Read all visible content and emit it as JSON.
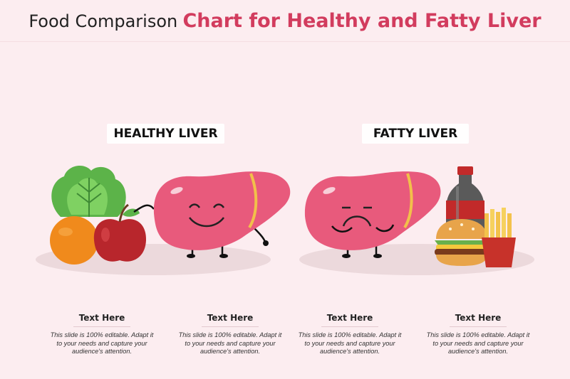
{
  "title": {
    "part1": "Food Comparison",
    "part2": "Chart for Healthy and Fatty Liver"
  },
  "sections": {
    "healthy": {
      "label": "HEALTHY LIVER"
    },
    "fatty": {
      "label": "FATTY LIVER"
    }
  },
  "cards": [
    {
      "heading": "Text Here",
      "body": "This slide is 100% editable. Adapt it to your needs and capture your audience's attention."
    },
    {
      "heading": "Text Here",
      "body": "This slide is 100% editable. Adapt it to your needs and capture your audience's attention."
    },
    {
      "heading": "Text Here",
      "body": "This slide is 100% editable. Adapt it to your needs and capture your audience's attention."
    },
    {
      "heading": "Text Here",
      "body": "This slide is 100% editable. Adapt it to your needs and capture your audience's attention."
    }
  ],
  "colors": {
    "background": "#fcedf0",
    "accent": "#d23c5e",
    "liver": "#e85a7c"
  },
  "icons": [
    "lettuce-icon",
    "orange-icon",
    "apple-icon",
    "happy-liver-icon",
    "sad-liver-icon",
    "soda-bottle-icon",
    "burger-icon",
    "fries-icon"
  ]
}
